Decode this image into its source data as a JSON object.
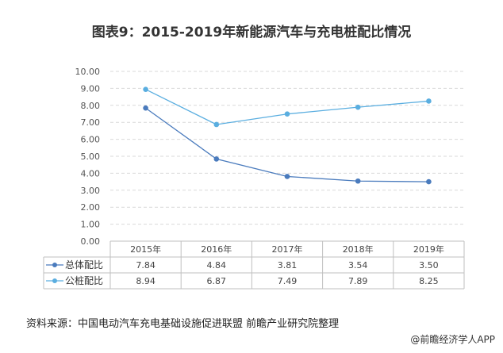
{
  "title": "图表9：2015-2019年新能源汽车与充电桩配比情况",
  "source": "资料来源：中国电动汽车充电基础设施促进联盟 前瞻产业研究院整理",
  "app_credit": "@前瞻经济学人APP",
  "chart_data": {
    "type": "line",
    "title": "图表9：2015-2019年新能源汽车与充电桩配比情况",
    "categories": [
      "2015年",
      "2016年",
      "2017年",
      "2018年",
      "2019年"
    ],
    "series": [
      {
        "name": "总体配比",
        "values": [
          7.84,
          4.84,
          3.81,
          3.54,
          3.5
        ],
        "color": "#4a7bbd"
      },
      {
        "name": "公桩配比",
        "values": [
          8.94,
          6.87,
          7.49,
          7.89,
          8.25
        ],
        "color": "#5aaee0"
      }
    ],
    "value_labels": [
      [
        "7.84",
        "4.84",
        "3.81",
        "3.54",
        "3.50"
      ],
      [
        "8.94",
        "6.87",
        "7.49",
        "7.89",
        "8.25"
      ]
    ],
    "yticks": [
      "0.00",
      "1.00",
      "2.00",
      "3.00",
      "4.00",
      "5.00",
      "6.00",
      "7.00",
      "8.00",
      "9.00",
      "10.00"
    ],
    "ylim": [
      0,
      10
    ],
    "grid": true,
    "legend": "data-table"
  }
}
